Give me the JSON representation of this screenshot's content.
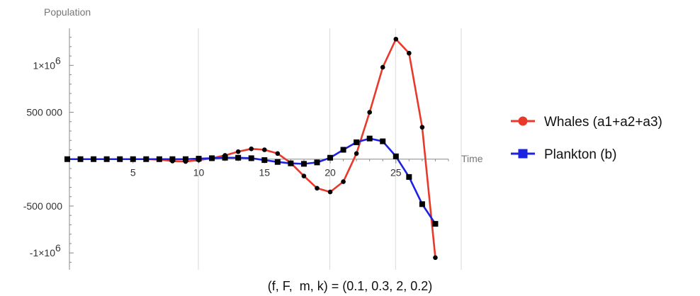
{
  "chart_data": {
    "type": "line",
    "ylabel": "Population",
    "xlabel": "Time",
    "caption": "(f, F,  m, k) = (0.1, 0.3, 2, 0.2)",
    "xlim": [
      0,
      29
    ],
    "ylim": [
      -1180000,
      1380000
    ],
    "x_ticks": [
      5,
      10,
      15,
      20,
      25
    ],
    "y_ticks": [
      {
        "value": 1000000,
        "label": "1×10",
        "exp": "6"
      },
      {
        "value": 500000,
        "label": "500 000",
        "exp": ""
      },
      {
        "value": -500000,
        "label": "-500 000",
        "exp": ""
      },
      {
        "value": -1000000,
        "label": "-1×10",
        "exp": "6"
      }
    ],
    "grid": {
      "vertical": [
        10,
        20,
        25,
        30
      ],
      "horizontal": false
    },
    "legend_position": "right",
    "x": [
      0,
      1,
      2,
      3,
      4,
      5,
      6,
      7,
      8,
      9,
      10,
      11,
      12,
      13,
      14,
      15,
      16,
      17,
      18,
      19,
      20,
      21,
      22,
      23,
      24,
      25,
      26,
      27,
      28
    ],
    "series": [
      {
        "name": "Whales (a1+a2+a3)",
        "color": "#e8392b",
        "marker": "circle",
        "values": [
          0,
          0,
          0,
          0,
          0,
          0,
          0,
          -5000,
          -20000,
          -25000,
          -10000,
          10000,
          40000,
          80000,
          110000,
          100000,
          60000,
          -40000,
          -180000,
          -310000,
          -350000,
          -240000,
          60000,
          500000,
          980000,
          1280000,
          1130000,
          340000,
          -1050000
        ]
      },
      {
        "name": "Plankton (b)",
        "color": "#1c22e0",
        "marker": "square",
        "values": [
          0,
          0,
          0,
          0,
          0,
          0,
          0,
          0,
          0,
          0,
          5000,
          10000,
          15000,
          15000,
          10000,
          -10000,
          -30000,
          -45000,
          -50000,
          -35000,
          15000,
          100000,
          180000,
          220000,
          190000,
          30000,
          -190000,
          -480000,
          -690000
        ]
      }
    ]
  }
}
